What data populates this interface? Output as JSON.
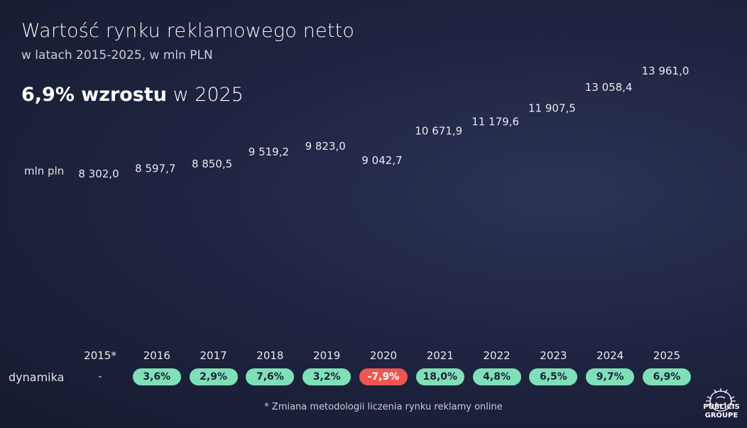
{
  "header": {
    "title": "Wartość rynku reklamowego netto",
    "subtitle": "w latach 2015-2025, w mln PLN",
    "highlight_bold": "6,9% wzrostu",
    "highlight_rest": " w 2025"
  },
  "unit_label": "mln pln",
  "dynamics_label": "dynamika",
  "footnote": "* Zmiana metodologii liczenia rynku reklamy online",
  "logo": {
    "line1": "PUBLICIS",
    "line2": "GROUPE"
  },
  "colors": {
    "bar_top": "#ff8c3a",
    "bar_bottom": "#ff4d6d",
    "pill_positive": "#7fe0b8",
    "pill_negative": "#f0564f"
  },
  "chart_data": {
    "type": "bar",
    "categories": [
      "2015*",
      "2016",
      "2017",
      "2018",
      "2019",
      "2020",
      "2021",
      "2022",
      "2023",
      "2024",
      "2025"
    ],
    "values": [
      8302.0,
      8597.7,
      8850.5,
      9519.2,
      9823.0,
      9042.7,
      10671.9,
      11179.6,
      11907.5,
      13058.4,
      13961.0
    ],
    "value_labels": [
      "8 302,0",
      "8 597,7",
      "8 850,5",
      "9 519,2",
      "9 823,0",
      "9 042,7",
      "10 671,9",
      "11 179,6",
      "11 907,5",
      "13 058,4",
      "13 961,0"
    ],
    "dynamics": [
      "-",
      "3,6%",
      "2,9%",
      "7,6%",
      "3,2%",
      "-7,9%",
      "18,0%",
      "4,8%",
      "6,5%",
      "9,7%",
      "6,9%"
    ],
    "title": "Wartość rynku reklamowego netto",
    "ylabel": "mln pln",
    "grid": false
  }
}
